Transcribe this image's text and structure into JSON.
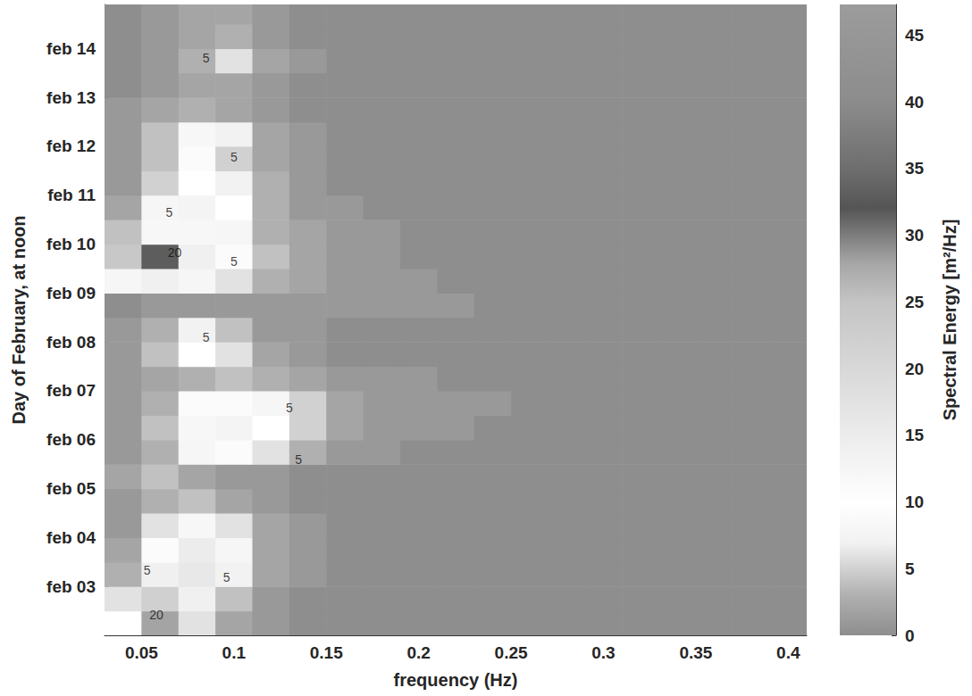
{
  "chart_data": {
    "type": "heatmap",
    "x_label": "frequency (Hz)",
    "y_label": "Day of February, at noon",
    "x": [
      0.04,
      0.06,
      0.08,
      0.1,
      0.12,
      0.14,
      0.16,
      0.18,
      0.2,
      0.22,
      0.24,
      0.26,
      0.28,
      0.3,
      0.32,
      0.34,
      0.36,
      0.38,
      0.4
    ],
    "y": [
      2.25,
      2.75,
      3.25,
      3.75,
      4.25,
      4.75,
      5.25,
      5.75,
      6.25,
      6.75,
      7.25,
      7.75,
      8.25,
      8.75,
      9.25,
      9.75,
      10.25,
      10.75,
      11.25,
      11.75,
      12.25,
      12.75,
      13.25,
      13.75,
      14.25,
      14.75
    ],
    "z": [
      [
        10,
        28,
        6,
        2,
        1,
        0,
        0,
        0,
        0,
        0,
        0,
        0,
        0,
        0,
        0,
        0,
        0,
        0,
        0
      ],
      [
        6,
        22,
        14,
        4,
        1,
        0,
        0,
        0,
        0,
        0,
        0,
        0,
        0,
        0,
        0,
        0,
        0,
        0,
        0
      ],
      [
        3,
        14,
        16,
        7,
        2,
        1,
        0,
        0,
        0,
        0,
        0,
        0,
        0,
        0,
        0,
        0,
        0,
        0,
        0
      ],
      [
        2,
        9,
        15,
        8,
        2,
        1,
        0,
        0,
        0,
        0,
        0,
        0,
        0,
        0,
        0,
        0,
        0,
        0,
        0
      ],
      [
        1,
        6,
        12,
        6,
        2,
        1,
        0,
        0,
        0,
        0,
        0,
        0,
        0,
        0,
        0,
        0,
        0,
        0,
        0
      ],
      [
        1,
        3,
        4,
        2,
        1,
        0,
        0,
        0,
        0,
        0,
        0,
        0,
        0,
        0,
        0,
        0,
        0,
        0,
        0
      ],
      [
        2,
        4,
        2,
        1,
        1,
        0,
        0,
        0,
        0,
        0,
        0,
        0,
        0,
        0,
        0,
        0,
        0,
        0,
        0
      ],
      [
        1,
        3,
        8,
        9,
        6,
        3,
        1,
        1,
        0,
        0,
        0,
        0,
        0,
        0,
        0,
        0,
        0,
        0,
        0
      ],
      [
        1,
        4,
        12,
        13,
        10,
        5,
        2,
        1,
        1,
        1,
        0,
        0,
        0,
        0,
        0,
        0,
        0,
        0,
        0
      ],
      [
        1,
        3,
        9,
        11,
        8,
        5,
        2,
        1,
        1,
        1,
        1,
        0,
        0,
        0,
        0,
        0,
        0,
        0,
        0
      ],
      [
        1,
        2,
        3,
        4,
        3,
        2,
        1,
        1,
        1,
        0,
        0,
        0,
        0,
        0,
        0,
        0,
        0,
        0,
        0
      ],
      [
        1,
        4,
        10,
        6,
        2,
        1,
        0,
        0,
        0,
        0,
        0,
        0,
        0,
        0,
        0,
        0,
        0,
        0,
        0
      ],
      [
        1,
        3,
        7,
        4,
        1,
        1,
        0,
        0,
        0,
        0,
        0,
        0,
        0,
        0,
        0,
        0,
        0,
        0,
        0
      ],
      [
        0,
        1,
        1,
        1,
        1,
        1,
        1,
        1,
        1,
        1,
        0,
        0,
        0,
        0,
        0,
        0,
        0,
        0,
        0
      ],
      [
        8,
        14,
        8,
        6,
        3,
        2,
        1,
        1,
        1,
        0,
        0,
        0,
        0,
        0,
        0,
        0,
        0,
        0,
        0
      ],
      [
        24,
        33,
        14,
        9,
        4,
        2,
        1,
        1,
        0,
        0,
        0,
        0,
        0,
        0,
        0,
        0,
        0,
        0,
        0
      ],
      [
        4,
        12,
        12,
        8,
        3,
        2,
        1,
        1,
        0,
        0,
        0,
        0,
        0,
        0,
        0,
        0,
        0,
        0,
        0
      ],
      [
        2,
        8,
        13,
        10,
        3,
        1,
        1,
        0,
        0,
        0,
        0,
        0,
        0,
        0,
        0,
        0,
        0,
        0,
        0
      ],
      [
        1,
        5,
        10,
        7,
        3,
        1,
        0,
        0,
        0,
        0,
        0,
        0,
        0,
        0,
        0,
        0,
        0,
        0,
        0
      ],
      [
        1,
        4,
        9,
        5,
        2,
        1,
        0,
        0,
        0,
        0,
        0,
        0,
        0,
        0,
        0,
        0,
        0,
        0,
        0
      ],
      [
        1,
        4,
        12,
        7,
        2,
        1,
        0,
        0,
        0,
        0,
        0,
        0,
        0,
        0,
        0,
        0,
        0,
        0,
        0
      ],
      [
        1,
        2,
        3,
        2,
        1,
        0,
        0,
        0,
        0,
        0,
        0,
        0,
        0,
        0,
        0,
        0,
        0,
        0,
        0
      ],
      [
        0,
        1,
        2,
        2,
        1,
        0,
        0,
        0,
        0,
        0,
        0,
        0,
        0,
        0,
        0,
        0,
        0,
        0,
        0
      ],
      [
        0,
        1,
        3,
        6,
        2,
        1,
        0,
        0,
        0,
        0,
        0,
        0,
        0,
        0,
        0,
        0,
        0,
        0,
        0
      ],
      [
        0,
        1,
        2,
        3,
        1,
        0,
        0,
        0,
        0,
        0,
        0,
        0,
        0,
        0,
        0,
        0,
        0,
        0,
        0
      ],
      [
        0,
        1,
        2,
        2,
        1,
        0,
        0,
        0,
        0,
        0,
        0,
        0,
        0,
        0,
        0,
        0,
        0,
        0,
        0
      ]
    ],
    "xlim": [
      0.03,
      0.41
    ],
    "xticks": [
      0.05,
      0.1,
      0.15,
      0.2,
      0.25,
      0.3,
      0.35,
      0.4
    ],
    "ylim": [
      2,
      14.9
    ],
    "yticks": [
      {
        "value": 3,
        "label": "feb 03"
      },
      {
        "value": 4,
        "label": "feb 04"
      },
      {
        "value": 5,
        "label": "feb 05"
      },
      {
        "value": 6,
        "label": "feb 06"
      },
      {
        "value": 7,
        "label": "feb 07"
      },
      {
        "value": 8,
        "label": "feb 08"
      },
      {
        "value": 9,
        "label": "feb 09"
      },
      {
        "value": 10,
        "label": "feb 10"
      },
      {
        "value": 11,
        "label": "feb 11"
      },
      {
        "value": 12,
        "label": "feb 12"
      },
      {
        "value": 13,
        "label": "feb 13"
      },
      {
        "value": 14,
        "label": "feb 14"
      }
    ],
    "colorbar": {
      "label": "Spectral Energy [m²/Hz]",
      "range": [
        0,
        47.3
      ],
      "ticks": [
        0,
        5,
        10,
        15,
        20,
        25,
        30,
        35,
        40,
        45
      ]
    },
    "annotations": [
      {
        "x": 0.085,
        "y": 13.8,
        "text": "5"
      },
      {
        "x": 0.1,
        "y": 11.78,
        "text": "5"
      },
      {
        "x": 0.065,
        "y": 10.64,
        "text": "5"
      },
      {
        "x": 0.068,
        "y": 9.82,
        "text": "20"
      },
      {
        "x": 0.1,
        "y": 9.65,
        "text": "5"
      },
      {
        "x": 0.085,
        "y": 8.09,
        "text": "5"
      },
      {
        "x": 0.13,
        "y": 6.65,
        "text": "5"
      },
      {
        "x": 0.135,
        "y": 5.6,
        "text": "5"
      },
      {
        "x": 0.053,
        "y": 3.33,
        "text": "5"
      },
      {
        "x": 0.096,
        "y": 3.18,
        "text": "5"
      },
      {
        "x": 0.058,
        "y": 2.42,
        "text": "20"
      }
    ],
    "grid": false
  }
}
